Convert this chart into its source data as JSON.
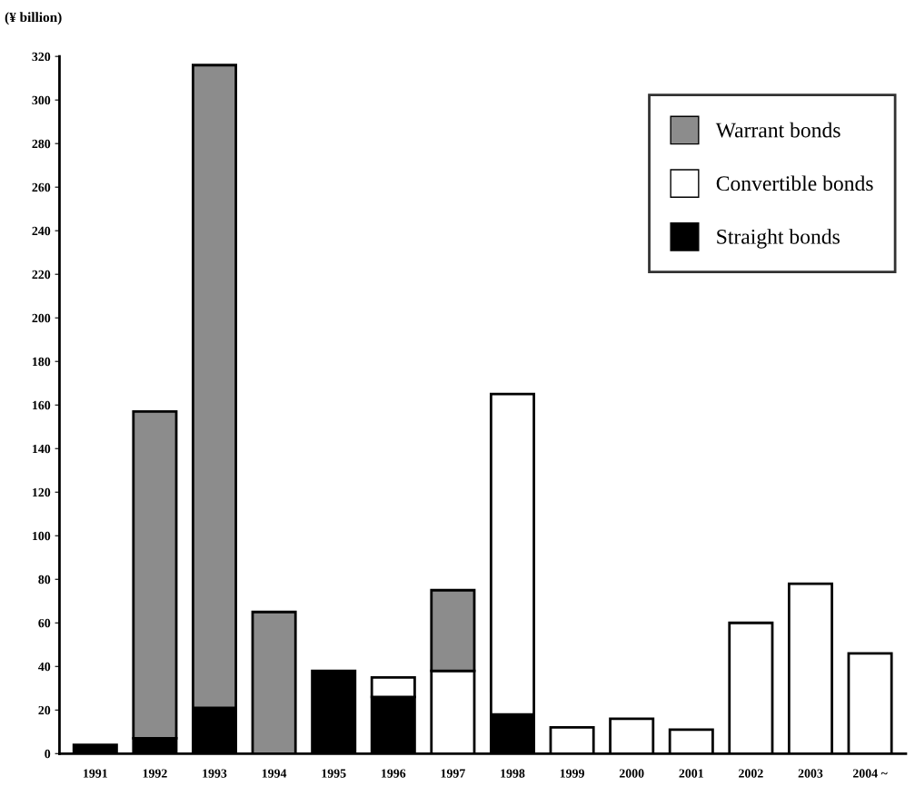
{
  "chart_data": {
    "type": "bar",
    "stacked": true,
    "ylabel": "(¥ billion)",
    "categories": [
      "1991",
      "1992",
      "1993",
      "1994",
      "1995",
      "1996",
      "1997",
      "1998",
      "1999",
      "2000",
      "2001",
      "2002",
      "2003",
      "2004 ~"
    ],
    "series": [
      {
        "name": "Straight bonds",
        "color": "#000000",
        "values": [
          4,
          7,
          21,
          null,
          38,
          26,
          null,
          18,
          null,
          null,
          null,
          null,
          null,
          null
        ]
      },
      {
        "name": "Convertible bonds",
        "color": "#ffffff",
        "values": [
          null,
          null,
          null,
          null,
          null,
          9,
          38,
          147,
          12,
          16,
          11,
          60,
          78,
          46
        ]
      },
      {
        "name": "Warrant bonds",
        "color": "#8c8c8c",
        "values": [
          null,
          150,
          295,
          65,
          null,
          null,
          37,
          null,
          null,
          null,
          null,
          null,
          null,
          null
        ]
      }
    ],
    "ylim": [
      0,
      320
    ],
    "yticks": [
      0,
      20,
      40,
      60,
      80,
      100,
      120,
      140,
      160,
      180,
      200,
      220,
      240,
      260,
      280,
      300,
      320
    ],
    "grid": false,
    "legend": "top right"
  }
}
